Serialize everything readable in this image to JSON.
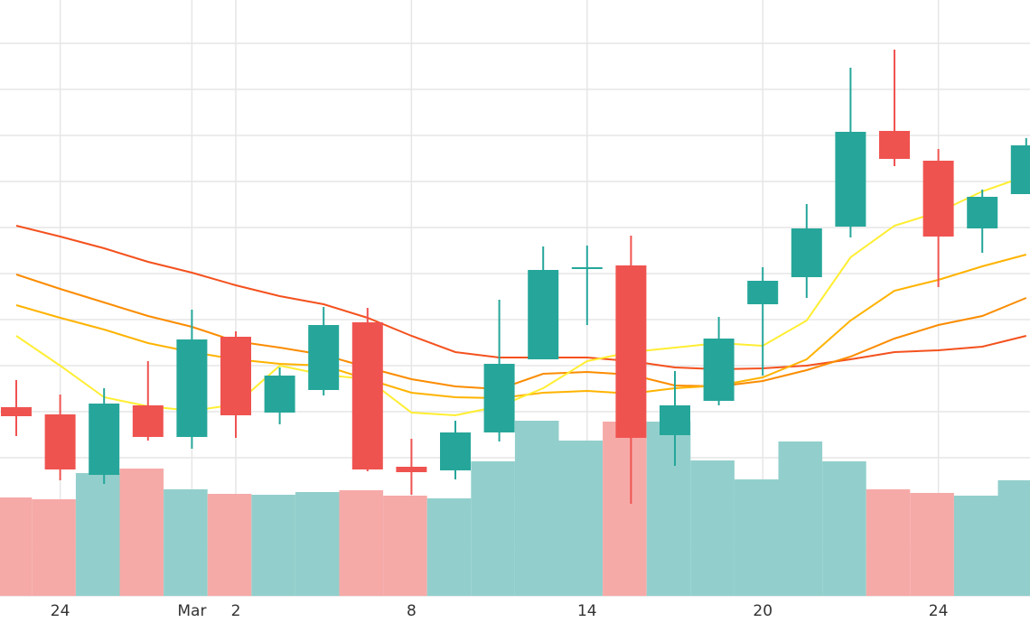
{
  "chart_data": {
    "type": "candlestick",
    "categories": [
      null,
      "24",
      null,
      null,
      "Mar",
      "2",
      null,
      null,
      null,
      "8",
      null,
      null,
      null,
      "14",
      null,
      null,
      null,
      "20",
      null,
      null,
      null,
      "24",
      null,
      null
    ],
    "open": [
      209,
      201,
      134,
      211,
      176,
      287,
      203,
      228,
      303,
      143,
      139,
      181,
      262,
      362,
      366,
      178,
      216,
      323,
      353,
      409,
      515,
      482,
      407,
      445
    ],
    "high": [
      239,
      223,
      230,
      260,
      317,
      293,
      253,
      320,
      319,
      174,
      194,
      328,
      387,
      388,
      399,
      249,
      309,
      364,
      434,
      585,
      605,
      495,
      450,
      507
    ],
    "low": [
      177,
      128,
      124,
      172,
      163,
      175,
      190,
      222,
      138,
      112,
      129,
      171,
      262,
      300,
      102,
      144,
      211,
      244,
      330,
      397,
      476,
      342,
      380,
      445
    ],
    "close": [
      199,
      140,
      213,
      176,
      284,
      200,
      244,
      300,
      140,
      137,
      181,
      257,
      361,
      364,
      175,
      211,
      285,
      349,
      407,
      514,
      484,
      398,
      442,
      499
    ],
    "volume": [
      109,
      107,
      136,
      141,
      118,
      113,
      112,
      115,
      117,
      111,
      108,
      149,
      194,
      172,
      193,
      193,
      150,
      129,
      171,
      149,
      118,
      114,
      111,
      128
    ],
    "up_color": "#26a69a",
    "down_color": "#ef5350",
    "volume_up_color": "#92cfcc",
    "volume_down_color": "#f6aaa8",
    "moving_averages": [
      {
        "color": "#f4511e",
        "values": [
          410,
          398,
          385,
          370,
          358,
          344,
          332,
          323,
          308,
          288,
          270,
          264,
          264,
          264,
          260,
          253,
          251,
          252,
          255,
          262,
          270,
          272,
          276,
          288
        ]
      },
      {
        "color": "#fb8c00",
        "values": [
          356,
          340,
          325,
          310,
          298,
          282,
          275,
          267,
          253,
          240,
          232,
          229,
          246,
          248,
          245,
          233,
          232,
          238,
          250,
          265,
          285,
          300,
          310,
          330
        ]
      },
      {
        "color": "#ffb300",
        "values": [
          322,
          308,
          295,
          280,
          270,
          262,
          257,
          255,
          240,
          225,
          220,
          219,
          225,
          227,
          224,
          230,
          233,
          242,
          262,
          305,
          338,
          350,
          365,
          378
        ]
      },
      {
        "color": "#ffee33",
        "values": [
          288,
          255,
          220,
          210,
          205,
          212,
          255,
          245,
          240,
          203,
          200,
          210,
          230,
          260,
          270,
          275,
          280,
          277,
          305,
          375,
          410,
          425,
          448,
          465
        ]
      }
    ],
    "ylim": [
      0,
      660
    ],
    "yticks": [
      0,
      51,
      102,
      153,
      204,
      255,
      306,
      357,
      408,
      459,
      510,
      561,
      612
    ],
    "ytick_labels": false,
    "grid": true
  }
}
